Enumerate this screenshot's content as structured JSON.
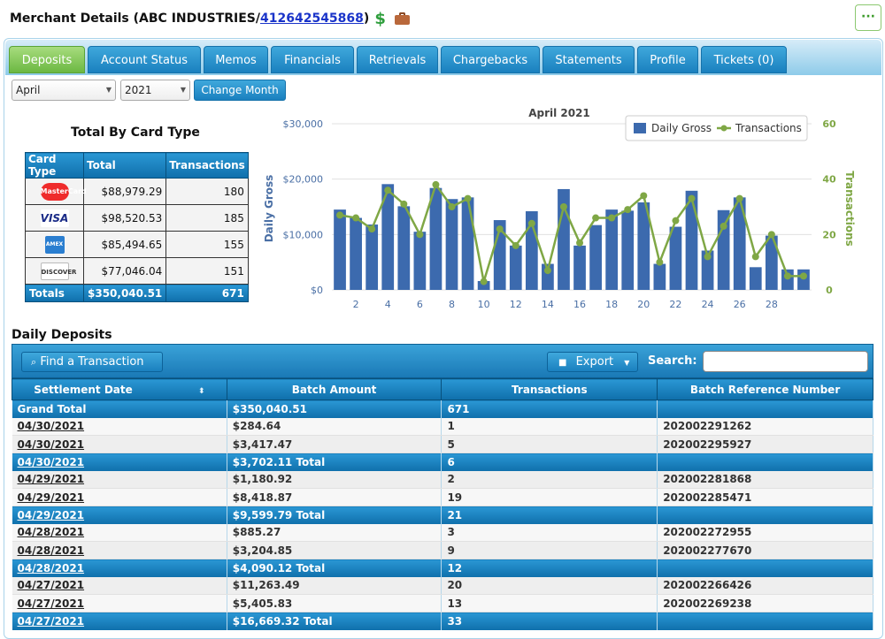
{
  "header": {
    "title_prefix": "Merchant Details (ABC INDUSTRIES/ ",
    "merchant_id": "412642545868",
    "title_suffix": ")",
    "dollar_glyph": "$",
    "more_glyph": "···"
  },
  "tabs": [
    {
      "label": "Deposits"
    },
    {
      "label": "Account Status"
    },
    {
      "label": "Memos"
    },
    {
      "label": "Financials"
    },
    {
      "label": "Retrievals"
    },
    {
      "label": "Chargebacks"
    },
    {
      "label": "Statements"
    },
    {
      "label": "Profile"
    },
    {
      "label": "Tickets (0)"
    }
  ],
  "controls": {
    "month": "April",
    "year": "2021",
    "change_month": "Change Month"
  },
  "card_table": {
    "title": "Total By Card Type",
    "headers": [
      "Card Type",
      "Total",
      "Transactions"
    ],
    "rows": [
      {
        "logo_text": "MasterCard",
        "total": "$88,979.29",
        "transactions": "180"
      },
      {
        "logo_text": "VISA",
        "total": "$98,520.53",
        "transactions": "185"
      },
      {
        "logo_text": "AMEX",
        "total": "$85,494.65",
        "transactions": "155"
      },
      {
        "logo_text": "DISCOVER",
        "total": "$77,046.04",
        "transactions": "151"
      }
    ],
    "totals_label": "Totals",
    "totals_total": "$350,040.51",
    "totals_transactions": "671"
  },
  "chart_data": {
    "type": "bar",
    "title": "April 2021",
    "ylabel": "Daily Gross",
    "y2label": "Transactions",
    "ylim": [
      0,
      30000
    ],
    "y2lim": [
      0,
      60
    ],
    "yticks": [
      "$0",
      "$10,000",
      "$20,000",
      "$30,000"
    ],
    "y2ticks": [
      "0",
      "20",
      "40",
      "60"
    ],
    "xticks": [
      "2",
      "4",
      "6",
      "8",
      "10",
      "12",
      "14",
      "16",
      "18",
      "20",
      "22",
      "24",
      "26",
      "28"
    ],
    "legend_placement": "top-right",
    "x": [
      1,
      2,
      3,
      4,
      5,
      6,
      7,
      8,
      9,
      10,
      11,
      12,
      13,
      14,
      15,
      16,
      17,
      18,
      19,
      20,
      21,
      22,
      23,
      24,
      25,
      26,
      27,
      28,
      29,
      30
    ],
    "series": [
      {
        "name": "Daily Gross",
        "kind": "bar",
        "color": "#3c6aae",
        "values": [
          14500,
          13000,
          11800,
          19100,
          15100,
          10500,
          18400,
          16400,
          16700,
          1600,
          12600,
          8000,
          14200,
          4700,
          18200,
          8000,
          11700,
          14500,
          14300,
          15800,
          4700,
          11400,
          17900,
          7100,
          14400,
          16700,
          4100,
          9800,
          3700,
          3700
        ]
      },
      {
        "name": "Transactions",
        "kind": "line",
        "color": "#7fa745",
        "values": [
          27,
          26,
          22,
          36,
          31,
          20,
          38,
          30,
          33,
          3,
          22,
          16,
          24,
          7,
          30,
          17,
          26,
          26,
          29,
          34,
          10,
          25,
          33,
          12,
          23,
          33,
          12,
          20,
          5,
          5
        ]
      }
    ]
  },
  "deposits": {
    "section_title": "Daily Deposits",
    "find_label": "Find a Transaction",
    "export_label": "Export",
    "search_label": "Search:",
    "columns": [
      "Settlement Date",
      "Batch Amount",
      "Transactions",
      "Batch Reference Number"
    ],
    "grand_total": {
      "label": "Grand Total",
      "amount": "$350,040.51",
      "transactions": "671"
    },
    "rows": [
      {
        "type": "row",
        "date": "04/30/2021",
        "amount": "$284.64",
        "transactions": "1",
        "ref": "202002291262"
      },
      {
        "type": "row",
        "date": "04/30/2021",
        "amount": "$3,417.47",
        "transactions": "5",
        "ref": "202002295927"
      },
      {
        "type": "total",
        "date": "04/30/2021",
        "amount": "$3,702.11 Total",
        "transactions": "6",
        "ref": ""
      },
      {
        "type": "row",
        "date": "04/29/2021",
        "amount": "$1,180.92",
        "transactions": "2",
        "ref": "202002281868"
      },
      {
        "type": "row",
        "date": "04/29/2021",
        "amount": "$8,418.87",
        "transactions": "19",
        "ref": "202002285471"
      },
      {
        "type": "total",
        "date": "04/29/2021",
        "amount": "$9,599.79 Total",
        "transactions": "21",
        "ref": ""
      },
      {
        "type": "row",
        "date": "04/28/2021",
        "amount": "$885.27",
        "transactions": "3",
        "ref": "202002272955"
      },
      {
        "type": "row",
        "date": "04/28/2021",
        "amount": "$3,204.85",
        "transactions": "9",
        "ref": "202002277670"
      },
      {
        "type": "total",
        "date": "04/28/2021",
        "amount": "$4,090.12 Total",
        "transactions": "12",
        "ref": ""
      },
      {
        "type": "row",
        "date": "04/27/2021",
        "amount": "$11,263.49",
        "transactions": "20",
        "ref": "202002266426"
      },
      {
        "type": "row",
        "date": "04/27/2021",
        "amount": "$5,405.83",
        "transactions": "13",
        "ref": "202002269238"
      },
      {
        "type": "total",
        "date": "04/27/2021",
        "amount": "$16,669.32 Total",
        "transactions": "33",
        "ref": ""
      }
    ]
  }
}
